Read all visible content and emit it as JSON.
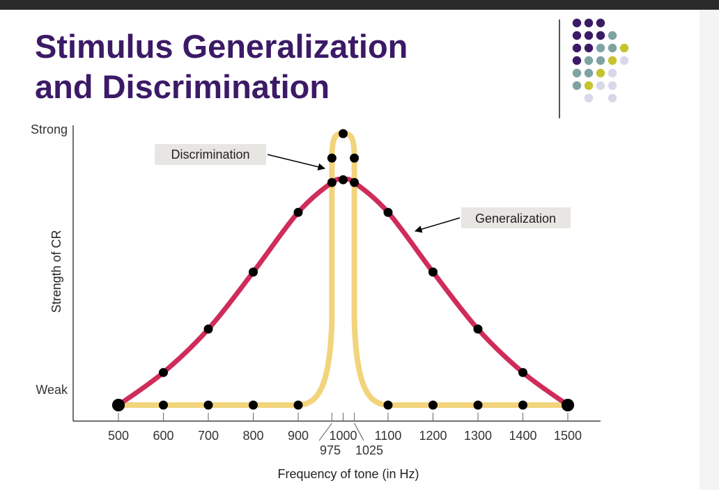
{
  "slide": {
    "title_line1": "Stimulus Generalization",
    "title_line2": "and Discrimination"
  },
  "colors": {
    "title": "#3b1a66",
    "generalization_curve": "#cf2c5a",
    "discrimination_curve": "#f2d47c",
    "markers": "#000000",
    "dot_purple": "#3b1a66",
    "dot_teal": "#7fa3a3",
    "dot_yellow": "#c5c42c",
    "dot_lavender": "#d8d8ea"
  },
  "decor": {
    "dot_grid": [
      [
        "purple",
        "purple",
        "purple",
        null,
        null
      ],
      [
        "purple",
        "purple",
        "purple",
        "teal",
        null
      ],
      [
        "purple",
        "purple",
        "teal",
        "teal",
        "yellow"
      ],
      [
        "purple",
        "teal",
        "teal",
        "yellow",
        "lavender"
      ],
      [
        "teal",
        "teal",
        "yellow",
        "lavender",
        null
      ],
      [
        "teal",
        "yellow",
        "lavender",
        "lavender",
        null
      ],
      [
        null,
        "lavender",
        null,
        "lavender",
        null
      ]
    ]
  },
  "chart_data": {
    "type": "line",
    "xlabel": "Frequency of tone (in Hz)",
    "ylabel": "Strength of CR",
    "y_tick_labels": [
      "Weak",
      "Strong"
    ],
    "xlim": [
      500,
      1500
    ],
    "ylim": [
      0,
      1
    ],
    "x_ticks_main": [
      500,
      600,
      700,
      800,
      900,
      1000,
      1100,
      1200,
      1300,
      1400,
      1500
    ],
    "x_ticks_minor": [
      975,
      1025
    ],
    "grid": false,
    "series": [
      {
        "name": "Generalization",
        "x": [
          500,
          600,
          700,
          800,
          900,
          975,
          1000,
          1025,
          1100,
          1200,
          1300,
          1400,
          1500
        ],
        "y": [
          0.0,
          0.12,
          0.28,
          0.49,
          0.71,
          0.82,
          0.83,
          0.82,
          0.71,
          0.49,
          0.28,
          0.12,
          0.0
        ]
      },
      {
        "name": "Discrimination",
        "x": [
          500,
          600,
          700,
          800,
          900,
          975,
          1000,
          1025,
          1100,
          1200,
          1300,
          1400,
          1500
        ],
        "y": [
          0.0,
          0.0,
          0.0,
          0.0,
          0.0,
          0.91,
          1.0,
          0.91,
          0.0,
          0.0,
          0.0,
          0.0,
          0.0
        ]
      }
    ],
    "annotations": [
      {
        "text": "Discrimination",
        "points_to": "Discrimination"
      },
      {
        "text": "Generalization",
        "points_to": "Generalization"
      }
    ]
  }
}
